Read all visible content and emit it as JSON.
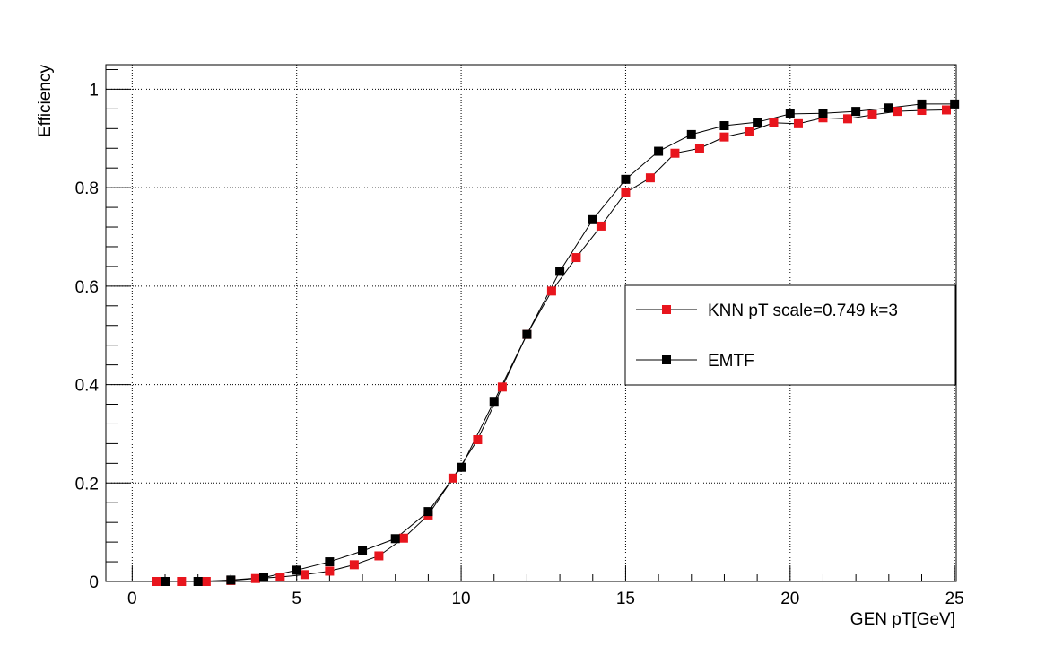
{
  "chart_data": {
    "type": "scatter",
    "title": "",
    "xlabel": "GEN pT[GeV]",
    "ylabel": "Efficiency",
    "xlim": [
      -0.8,
      25.05
    ],
    "ylim": [
      0,
      1.05
    ],
    "x_ticks": [
      0,
      5,
      10,
      15,
      20,
      25
    ],
    "x_tick_labels": [
      "0",
      "5",
      "10",
      "15",
      "20",
      "25"
    ],
    "y_ticks": [
      0,
      0.2,
      0.4,
      0.6,
      0.8,
      1
    ],
    "y_tick_labels": [
      "0",
      "0.2",
      "0.4",
      "0.6",
      "0.8",
      "1"
    ],
    "grid": true,
    "legend_position": "center-right",
    "series": [
      {
        "name": "KNN pT scale=0.749 k=3",
        "color": "#e8151d",
        "marker": "square",
        "x": [
          0.75,
          1.5,
          2.25,
          3.0,
          3.75,
          4.5,
          5.25,
          6.0,
          6.75,
          7.5,
          8.25,
          9.0,
          9.75,
          10.5,
          11.25,
          12.0,
          12.75,
          13.5,
          14.25,
          15.0,
          15.75,
          16.5,
          17.25,
          18.0,
          18.75,
          19.5,
          20.25,
          21.0,
          21.75,
          22.5,
          23.25,
          24.0,
          24.75
        ],
        "y": [
          0.0,
          0.0,
          0.0,
          0.002,
          0.006,
          0.009,
          0.014,
          0.021,
          0.034,
          0.052,
          0.088,
          0.135,
          0.21,
          0.288,
          0.395,
          0.502,
          0.59,
          0.658,
          0.722,
          0.79,
          0.82,
          0.87,
          0.88,
          0.903,
          0.914,
          0.932,
          0.93,
          0.942,
          0.94,
          0.948,
          0.955,
          0.957,
          0.958
        ]
      },
      {
        "name": "EMTF",
        "color": "#000000",
        "marker": "square",
        "x": [
          1,
          2,
          3,
          4,
          5,
          6,
          7,
          8,
          9,
          10,
          11,
          12,
          13,
          14,
          15,
          16,
          17,
          18,
          19,
          20,
          21,
          22,
          23,
          24,
          25
        ],
        "y": [
          0.0,
          0.0,
          0.003,
          0.008,
          0.023,
          0.04,
          0.062,
          0.087,
          0.142,
          0.232,
          0.366,
          0.502,
          0.63,
          0.735,
          0.817,
          0.874,
          0.908,
          0.926,
          0.933,
          0.95,
          0.951,
          0.955,
          0.962,
          0.97,
          0.97
        ]
      }
    ]
  }
}
